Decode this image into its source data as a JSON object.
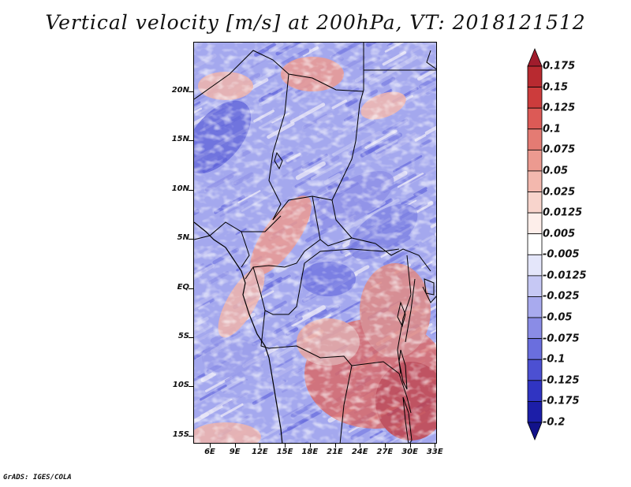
{
  "title": "Vertical velocity [m/s] at 200hPa, VT: 2018121512",
  "y_axis_labels": [
    "20N",
    "15N",
    "10N",
    "5N",
    "EQ",
    "5S",
    "10S",
    "15S"
  ],
  "x_axis_labels": [
    "6E",
    "9E",
    "12E",
    "15E",
    "18E",
    "21E",
    "24E",
    "27E",
    "30E",
    "33E"
  ],
  "colorbar": {
    "labels": [
      "0.175",
      "0.15",
      "0.125",
      "0.1",
      "0.075",
      "0.05",
      "0.025",
      "0.0125",
      "0.005",
      "-0.005",
      "-0.0125",
      "-0.025",
      "-0.05",
      "-0.075",
      "-0.1",
      "-0.125",
      "-0.175",
      "-0.2"
    ],
    "colors": [
      "#a01c2c",
      "#b82a30",
      "#cc3c3c",
      "#dc5a56",
      "#e47b73",
      "#ec9a90",
      "#f3b8ae",
      "#f8d4cc",
      "#fdeeea",
      "#ffffff",
      "#e4e6fa",
      "#c6c8f4",
      "#a8aaee",
      "#8a8ce6",
      "#6a6ede",
      "#4c50d2",
      "#3034c2",
      "#1c1ea8",
      "#12128a"
    ]
  },
  "credit": "GrADS: IGES/COLA"
}
